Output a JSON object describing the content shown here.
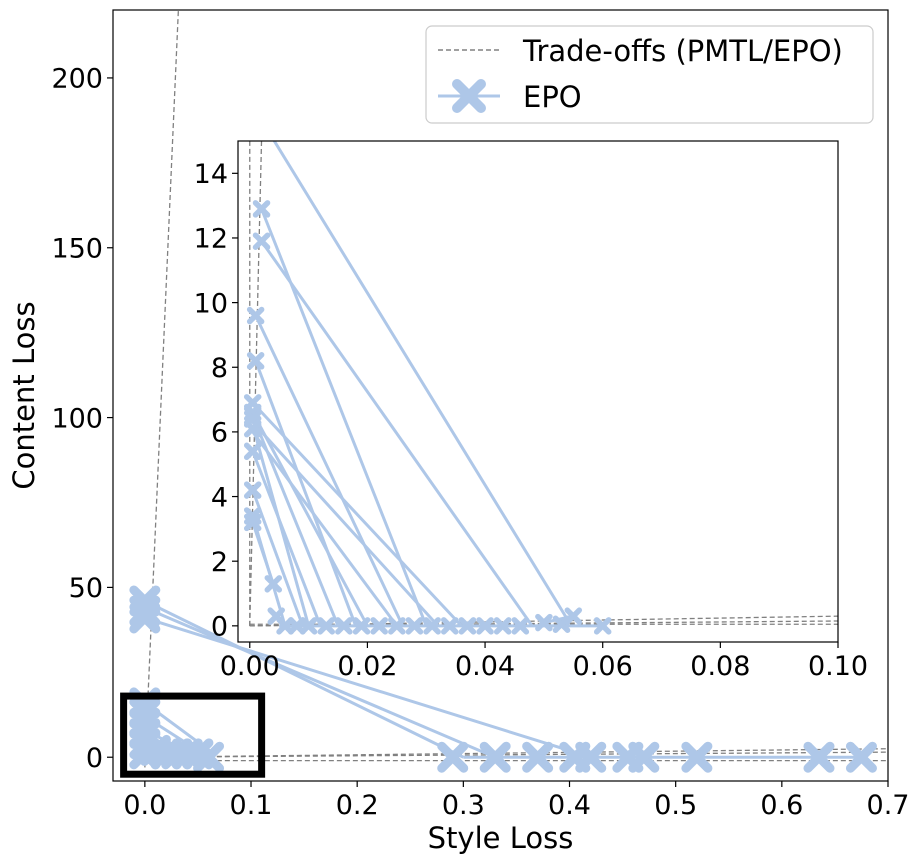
{
  "chart_data": [
    {
      "type": "line",
      "panel": "main",
      "xlabel": "Style Loss",
      "ylabel": "Content Loss",
      "xlim": [
        -0.03,
        0.7
      ],
      "ylim": [
        -7,
        220
      ],
      "xticks": [
        0.0,
        0.1,
        0.2,
        0.3,
        0.4,
        0.5,
        0.6,
        0.7
      ],
      "xtick_labels": [
        "0.0",
        "0.1",
        "0.2",
        "0.3",
        "0.4",
        "0.5",
        "0.6",
        "0.7"
      ],
      "yticks": [
        0,
        50,
        100,
        150,
        200
      ],
      "ytick_labels": [
        "0",
        "50",
        "100",
        "150",
        "200"
      ],
      "zoom_box": {
        "x": [
          -0.02,
          0.11
        ],
        "y": [
          -5,
          18
        ]
      },
      "legend": {
        "placement": "top-right",
        "entries": [
          "Trade-offs (PMTL/EPO)",
          "EPO"
        ]
      },
      "tradeoff_lines": [
        [
          [
            0.0,
            -3
          ],
          [
            0.033,
            230
          ]
        ],
        [
          [
            0.0,
            -1
          ],
          [
            0.7,
            -1
          ]
        ],
        [
          [
            0.0,
            0
          ],
          [
            0.7,
            1.5
          ]
        ],
        [
          [
            0.0,
            0
          ],
          [
            0.7,
            2.5
          ]
        ]
      ],
      "series": [
        {
          "name": "EPO",
          "color": "#aec7e8",
          "marker": "X",
          "segments": [
            [
              [
                0.0,
                46
              ],
              [
                0.0,
                41
              ]
            ],
            [
              [
                0.0,
                46
              ],
              [
                0.3,
                0
              ]
            ],
            [
              [
                0.0,
                41
              ],
              [
                0.42,
                0
              ]
            ],
            [
              [
                0.0,
                44
              ],
              [
                0.33,
                0
              ]
            ],
            [
              [
                0.0,
                16
              ],
              [
                0.065,
                1
              ]
            ],
            [
              [
                0.0,
                12
              ],
              [
                0.06,
                0
              ]
            ],
            [
              [
                0.0,
                8
              ],
              [
                0.05,
                0
              ]
            ],
            [
              [
                0.0,
                4
              ],
              [
                0.04,
                0
              ]
            ],
            [
              [
                0.3,
                0
              ],
              [
                0.68,
                0
              ]
            ]
          ],
          "points": [
            [
              0.0,
              46
            ],
            [
              0.0,
              43
            ],
            [
              0.0,
              41
            ],
            [
              0.29,
              0
            ],
            [
              0.33,
              0
            ],
            [
              0.37,
              0
            ],
            [
              0.405,
              0
            ],
            [
              0.42,
              0
            ],
            [
              0.455,
              0
            ],
            [
              0.47,
              0
            ],
            [
              0.52,
              0
            ],
            [
              0.635,
              0
            ],
            [
              0.675,
              0
            ],
            [
              0.0,
              16
            ],
            [
              0.0,
              13
            ],
            [
              0.0,
              10
            ],
            [
              0.0,
              7
            ],
            [
              0.0,
              4
            ],
            [
              0.0,
              1
            ],
            [
              0.01,
              2
            ],
            [
              0.02,
              1
            ],
            [
              0.03,
              1
            ],
            [
              0.04,
              1
            ],
            [
              0.05,
              1
            ],
            [
              0.06,
              0
            ]
          ]
        }
      ]
    },
    {
      "type": "line",
      "panel": "inset",
      "xlim": [
        -0.002,
        0.1
      ],
      "ylim": [
        -0.5,
        15
      ],
      "xticks": [
        0.0,
        0.02,
        0.04,
        0.06,
        0.08,
        0.1
      ],
      "xtick_labels": [
        "0.00",
        "0.02",
        "0.04",
        "0.06",
        "0.08",
        "0.10"
      ],
      "yticks": [
        0,
        2,
        4,
        6,
        8,
        10,
        12,
        14
      ],
      "ytick_labels": [
        "0",
        "2",
        "4",
        "6",
        "8",
        "10",
        "12",
        "14"
      ],
      "tradeoff_lines": [
        [
          [
            0.0,
            0
          ],
          [
            0.0,
            15
          ]
        ],
        [
          [
            0.0,
            0
          ],
          [
            0.002,
            15
          ]
        ],
        [
          [
            0.0,
            0.05
          ],
          [
            0.1,
            0.05
          ]
        ],
        [
          [
            0.0,
            0.0
          ],
          [
            0.1,
            0.3
          ]
        ],
        [
          [
            0.0,
            0.0
          ],
          [
            0.1,
            0.15
          ]
        ]
      ],
      "series": [
        {
          "name": "EPO",
          "color": "#aec7e8",
          "marker": "X",
          "segments": [
            [
              [
                0.0035,
                15.2
              ],
              [
                0.054,
                0.2
              ]
            ],
            [
              [
                0.002,
                11.9
              ],
              [
                0.048,
                0
              ]
            ],
            [
              [
                0.002,
                12.9
              ],
              [
                0.03,
                0
              ]
            ],
            [
              [
                0.001,
                9.6
              ],
              [
                0.026,
                0
              ]
            ],
            [
              [
                0.001,
                8.2
              ],
              [
                0.018,
                0
              ]
            ],
            [
              [
                0.0005,
                6.9
              ],
              [
                0.036,
                0
              ]
            ],
            [
              [
                0.0005,
                6.6
              ],
              [
                0.02,
                0
              ]
            ],
            [
              [
                0.0005,
                6.3
              ],
              [
                0.032,
                0
              ]
            ],
            [
              [
                0.0005,
                6.0
              ],
              [
                0.025,
                0
              ]
            ],
            [
              [
                0.0005,
                5.4
              ],
              [
                0.012,
                0
              ]
            ],
            [
              [
                0.0005,
                4.2
              ],
              [
                0.009,
                0
              ]
            ],
            [
              [
                0.0005,
                3.4
              ],
              [
                0.006,
                0
              ]
            ],
            [
              [
                0.0005,
                3.2
              ],
              [
                0.004,
                1.3
              ]
            ],
            [
              [
                0.0005,
                6.5
              ],
              [
                0.015,
                0
              ]
            ],
            [
              [
                0.0005,
                6.2
              ],
              [
                0.01,
                0
              ]
            ],
            [
              [
                0.005,
                0
              ],
              [
                0.06,
                0
              ]
            ],
            [
              [
                0.05,
                0.1
              ],
              [
                0.055,
                0.3
              ]
            ]
          ],
          "points": [
            [
              0.002,
              12.9
            ],
            [
              0.002,
              11.9
            ],
            [
              0.001,
              9.6
            ],
            [
              0.001,
              8.2
            ],
            [
              0.0005,
              6.9
            ],
            [
              0.0005,
              6.6
            ],
            [
              0.0005,
              6.4
            ],
            [
              0.0005,
              6.1
            ],
            [
              0.0005,
              5.4
            ],
            [
              0.0005,
              4.2
            ],
            [
              0.0005,
              3.4
            ],
            [
              0.0005,
              3.2
            ],
            [
              0.004,
              1.3
            ],
            [
              0.0045,
              0.3
            ],
            [
              0.006,
              0
            ],
            [
              0.008,
              0
            ],
            [
              0.01,
              0
            ],
            [
              0.013,
              0
            ],
            [
              0.016,
              0
            ],
            [
              0.019,
              0
            ],
            [
              0.022,
              0
            ],
            [
              0.025,
              0
            ],
            [
              0.028,
              0
            ],
            [
              0.031,
              0
            ],
            [
              0.034,
              0
            ],
            [
              0.037,
              0
            ],
            [
              0.04,
              0
            ],
            [
              0.043,
              0
            ],
            [
              0.046,
              0
            ],
            [
              0.05,
              0.1
            ],
            [
              0.053,
              0.05
            ],
            [
              0.055,
              0.3
            ],
            [
              0.06,
              0
            ]
          ]
        }
      ]
    }
  ]
}
